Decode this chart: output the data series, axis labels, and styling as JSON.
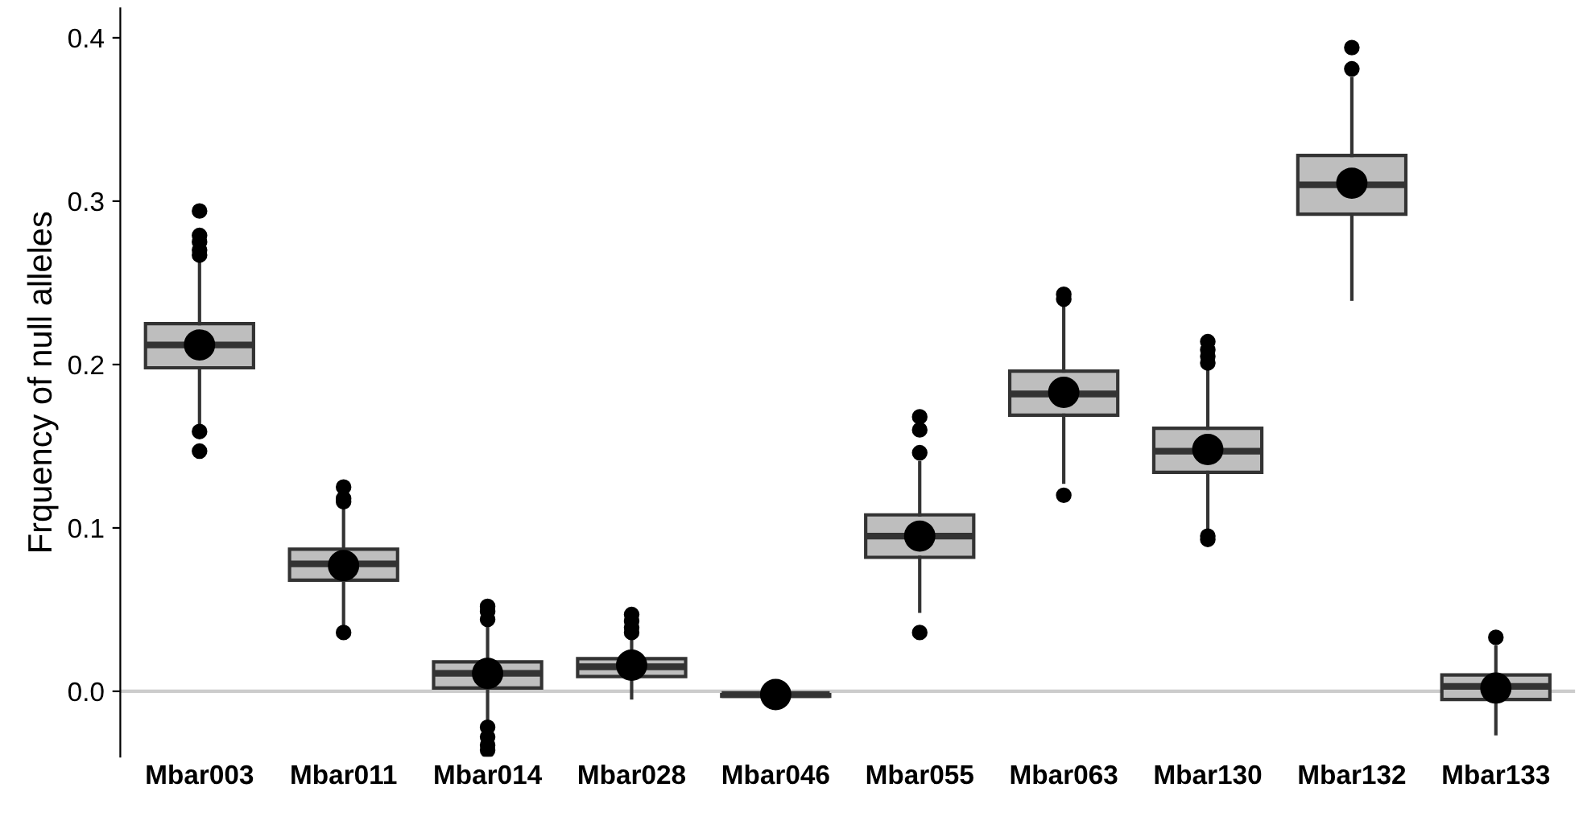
{
  "chart_data": {
    "type": "box",
    "ylabel": "Frquency of null alleles",
    "categories": [
      "Mbar003",
      "Mbar011",
      "Mbar014",
      "Mbar028",
      "Mbar046",
      "Mbar055",
      "Mbar063",
      "Mbar130",
      "Mbar132",
      "Mbar133"
    ],
    "boxes": [
      {
        "low": 0.162,
        "q1": 0.198,
        "median": 0.212,
        "q3": 0.225,
        "high": 0.265,
        "mean": 0.212,
        "outliers": [
          0.294,
          0.279,
          0.275,
          0.27,
          0.267,
          0.159,
          0.147
        ]
      },
      {
        "low": 0.04,
        "q1": 0.068,
        "median": 0.078,
        "q3": 0.087,
        "high": 0.112,
        "mean": 0.077,
        "outliers": [
          0.125,
          0.118,
          0.116,
          0.036
        ]
      },
      {
        "low": -0.018,
        "q1": 0.002,
        "median": 0.011,
        "q3": 0.018,
        "high": 0.042,
        "mean": 0.011,
        "outliers": [
          0.052,
          0.049,
          0.044,
          -0.022,
          -0.028,
          -0.033,
          -0.036
        ]
      },
      {
        "low": -0.004,
        "q1": 0.009,
        "median": 0.015,
        "q3": 0.02,
        "high": 0.033,
        "mean": 0.016,
        "outliers": [
          0.047,
          0.043,
          0.039,
          0.036
        ]
      },
      {
        "low": -0.003,
        "q1": -0.003,
        "median": -0.002,
        "q3": -0.002,
        "high": -0.001,
        "mean": -0.002
      },
      {
        "low": 0.049,
        "q1": 0.082,
        "median": 0.095,
        "q3": 0.108,
        "high": 0.14,
        "mean": 0.095,
        "outliers": [
          0.168,
          0.16,
          0.146,
          0.036
        ]
      },
      {
        "low": 0.128,
        "q1": 0.169,
        "median": 0.182,
        "q3": 0.196,
        "high": 0.235,
        "mean": 0.183,
        "outliers": [
          0.243,
          0.24,
          0.12
        ]
      },
      {
        "low": 0.1,
        "q1": 0.134,
        "median": 0.147,
        "q3": 0.161,
        "high": 0.197,
        "mean": 0.148,
        "outliers": [
          0.214,
          0.209,
          0.205,
          0.201,
          0.095,
          0.093
        ]
      },
      {
        "low": 0.24,
        "q1": 0.292,
        "median": 0.31,
        "q3": 0.328,
        "high": 0.375,
        "mean": 0.311,
        "outliers": [
          0.394,
          0.381
        ]
      },
      {
        "low": -0.026,
        "q1": -0.005,
        "median": 0.003,
        "q3": 0.01,
        "high": 0.027,
        "mean": 0.002,
        "outliers": [
          0.033
        ]
      }
    ],
    "color": "#bebebe",
    "ylim": [
      -0.04,
      0.418
    ],
    "yticks": [
      {
        "value": 0,
        "label": "0.0"
      },
      0.1,
      0.2,
      0.3,
      0.4
    ],
    "ref_lines": [
      {
        "axis": "y",
        "value": 0,
        "color": "#cccccc"
      }
    ],
    "grid": false
  }
}
